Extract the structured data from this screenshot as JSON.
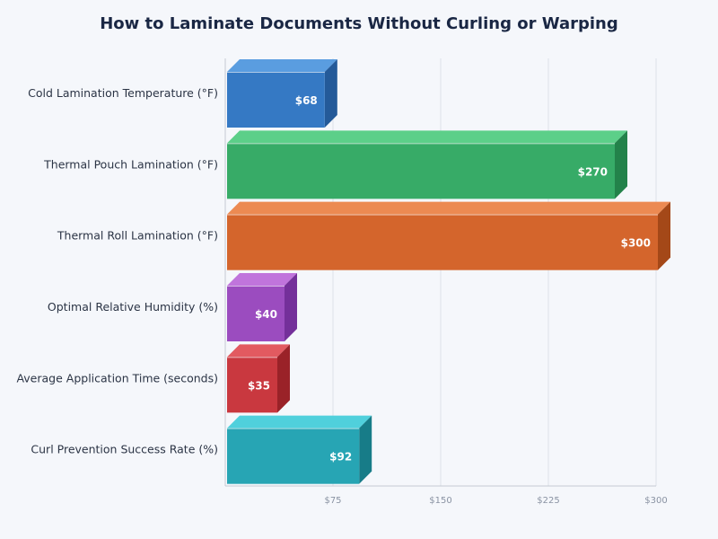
{
  "chart_data": {
    "type": "bar",
    "orientation": "horizontal",
    "style": "3d",
    "title": "How to Laminate Documents Without Curling or Warping",
    "categories": [
      "Cold Lamination Temperature (°F)",
      "Thermal Pouch Lamination (°F)",
      "Thermal Roll Lamination (°F)",
      "Optimal Relative Humidity (%)",
      "Average Application Time (seconds)",
      "Curl Prevention Success Rate (%)"
    ],
    "values": [
      68,
      270,
      300,
      40,
      35,
      92
    ],
    "data_labels": [
      "$68",
      "$270",
      "$300",
      "$40",
      "$35",
      "$92"
    ],
    "colors": [
      {
        "front": "#3579c4",
        "top": "#5a9de0",
        "side": "#245a99"
      },
      {
        "front": "#37ab67",
        "top": "#5ccf89",
        "side": "#23824a"
      },
      {
        "front": "#d4652c",
        "top": "#ec8a52",
        "side": "#a44818"
      },
      {
        "front": "#9b4cbf",
        "top": "#c074dc",
        "side": "#74309a"
      },
      {
        "front": "#c9383f",
        "top": "#e25a60",
        "side": "#9a2228"
      },
      {
        "front": "#27a5b4",
        "top": "#50d0dc",
        "side": "#177c88"
      }
    ],
    "xlim": [
      0,
      300
    ],
    "xticks": [
      75,
      150,
      225,
      300
    ],
    "xtick_labels": [
      "$75",
      "$150",
      "$225",
      "$300"
    ],
    "grid": true,
    "xlabel": "",
    "ylabel": ""
  }
}
